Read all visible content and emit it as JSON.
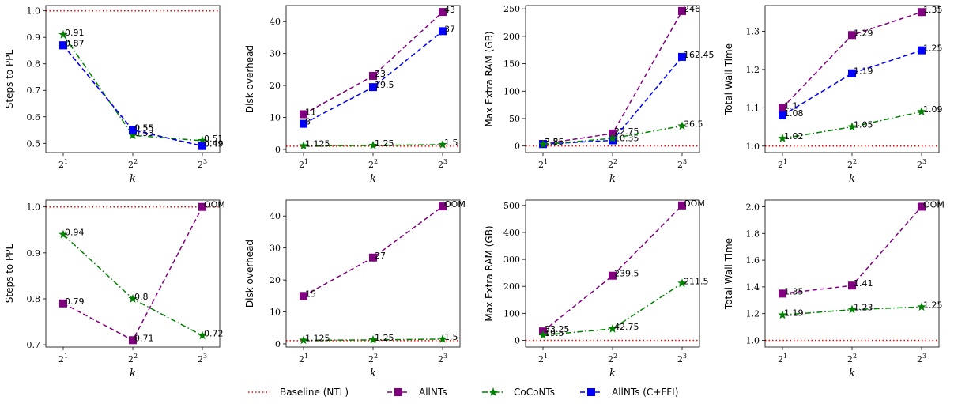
{
  "legend": {
    "entries": [
      {
        "label": "Baseline (NTL)",
        "color": "#ff0000",
        "style": "dotted",
        "marker": "none"
      },
      {
        "label": "AllNTs",
        "color": "#800080",
        "style": "dashed",
        "marker": "square"
      },
      {
        "label": "CoCoNTs",
        "color": "#008000",
        "style": "dashdot",
        "marker": "star"
      },
      {
        "label": "AllNTs (C+FFI)",
        "color": "#0000ff",
        "style": "dashed",
        "marker": "square"
      }
    ]
  },
  "chart_data": [
    {
      "type": "line",
      "row": 1,
      "col": 1,
      "xlabel": "k",
      "ylabel": "Steps to PPL",
      "x": [
        "2^1",
        "2^2",
        "2^3"
      ],
      "ylim": [
        0.465,
        1.02
      ],
      "yticks": [
        0.5,
        0.6,
        0.7,
        0.8,
        0.9,
        1.0
      ],
      "ytick_labels": [
        "0.5",
        "0.6",
        "0.7",
        "0.8",
        "0.9",
        "1.0"
      ],
      "baseline": 1.0,
      "series": [
        {
          "name": "CoCoNTs",
          "values": [
            0.91,
            0.53,
            0.51
          ],
          "labels": [
            "0.91",
            "0.53",
            "0.51"
          ]
        },
        {
          "name": "AllNTs",
          "values": [
            0.87,
            0.55,
            0.49
          ],
          "labels": [
            "0.87",
            "0.55",
            "0.49"
          ]
        },
        {
          "name": "AllNTs (C+FFI)",
          "values": [
            0.87,
            0.55,
            0.49
          ],
          "labels": [
            "0.87",
            "0.55",
            "0.49"
          ]
        }
      ]
    },
    {
      "type": "line",
      "row": 1,
      "col": 2,
      "xlabel": "k",
      "ylabel": "Disk overhead",
      "x": [
        "2^1",
        "2^2",
        "2^3"
      ],
      "ylim": [
        -1,
        45
      ],
      "yticks": [
        0,
        10,
        20,
        30,
        40
      ],
      "ytick_labels": [
        "0",
        "10",
        "20",
        "30",
        "40"
      ],
      "baseline": 1.0,
      "series": [
        {
          "name": "AllNTs",
          "values": [
            11,
            23,
            43
          ],
          "labels": [
            "11",
            "23",
            "43"
          ]
        },
        {
          "name": "AllNTs (C+FFI)",
          "values": [
            8,
            19.5,
            37
          ],
          "labels": [
            "8",
            "19.5",
            "37"
          ]
        },
        {
          "name": "CoCoNTs",
          "values": [
            1.125,
            1.25,
            1.5
          ],
          "labels": [
            "1.125",
            "1.25",
            "1.5"
          ]
        }
      ]
    },
    {
      "type": "line",
      "row": 1,
      "col": 3,
      "xlabel": "k",
      "ylabel": "Max Extra RAM (GB)",
      "x": [
        "2^1",
        "2^2",
        "2^3"
      ],
      "ylim": [
        -12,
        256
      ],
      "yticks": [
        0,
        50,
        100,
        150,
        200,
        250
      ],
      "ytick_labels": [
        "0",
        "50",
        "100",
        "150",
        "200",
        "250"
      ],
      "baseline": 0,
      "series": [
        {
          "name": "AllNTs",
          "values": [
            3.85,
            22.75,
            246
          ],
          "labels": [
            "3.85",
            "22.75",
            "246"
          ]
        },
        {
          "name": "AllNTs (C+FFI)",
          "values": [
            3.5,
            10.35,
            162.45
          ],
          "labels": [
            "3.5",
            "10.35",
            "162.45"
          ]
        },
        {
          "name": "CoCoNTs",
          "values": [
            3.0,
            14.0,
            36.5
          ],
          "labels": [
            "",
            "",
            "36.5"
          ]
        }
      ]
    },
    {
      "type": "line",
      "row": 1,
      "col": 4,
      "xlabel": "k",
      "ylabel": "Total Wall Time",
      "x": [
        "2^1",
        "2^2",
        "2^3"
      ],
      "ylim": [
        0.983,
        1.367
      ],
      "yticks": [
        1.0,
        1.1,
        1.2,
        1.3
      ],
      "ytick_labels": [
        "1.0",
        "1.1",
        "1.2",
        "1.3"
      ],
      "baseline": 1.0,
      "series": [
        {
          "name": "AllNTs",
          "values": [
            1.1,
            1.29,
            1.35
          ],
          "labels": [
            "1.1",
            "1.29",
            "1.35"
          ]
        },
        {
          "name": "AllNTs (C+FFI)",
          "values": [
            1.08,
            1.19,
            1.25
          ],
          "labels": [
            "1.08",
            "1.19",
            "1.25"
          ]
        },
        {
          "name": "CoCoNTs",
          "values": [
            1.02,
            1.05,
            1.09
          ],
          "labels": [
            "1.02",
            "1.05",
            "1.09"
          ]
        }
      ]
    },
    {
      "type": "line",
      "row": 2,
      "col": 1,
      "xlabel": "k",
      "ylabel": "Steps to PPL",
      "x": [
        "2^1",
        "2^2",
        "2^3"
      ],
      "ylim": [
        0.695,
        1.015
      ],
      "yticks": [
        0.7,
        0.8,
        0.9,
        1.0
      ],
      "ytick_labels": [
        "0.7",
        "0.8",
        "0.9",
        "1.0"
      ],
      "baseline": 1.0,
      "series": [
        {
          "name": "AllNTs",
          "values": [
            0.79,
            0.71,
            1.0
          ],
          "labels": [
            "0.79",
            "0.71",
            "OOM"
          ]
        },
        {
          "name": "CoCoNTs",
          "values": [
            0.94,
            0.8,
            0.72
          ],
          "labels": [
            "0.94",
            "0.8",
            "0.72"
          ]
        }
      ]
    },
    {
      "type": "line",
      "row": 2,
      "col": 2,
      "xlabel": "k",
      "ylabel": "Disk overhead",
      "x": [
        "2^1",
        "2^2",
        "2^3"
      ],
      "ylim": [
        -1,
        45
      ],
      "yticks": [
        0,
        10,
        20,
        30,
        40
      ],
      "ytick_labels": [
        "0",
        "10",
        "20",
        "30",
        "40"
      ],
      "baseline": 1.0,
      "series": [
        {
          "name": "AllNTs",
          "values": [
            15,
            27,
            43
          ],
          "labels": [
            "15",
            "27",
            "OOM"
          ]
        },
        {
          "name": "CoCoNTs",
          "values": [
            1.125,
            1.25,
            1.5
          ],
          "labels": [
            "1.125",
            "1.25",
            "1.5"
          ]
        }
      ]
    },
    {
      "type": "line",
      "row": 2,
      "col": 3,
      "xlabel": "k",
      "ylabel": "Max Extra RAM (GB)",
      "x": [
        "2^1",
        "2^2",
        "2^3"
      ],
      "ylim": [
        -25,
        520
      ],
      "yticks": [
        0,
        100,
        200,
        300,
        400,
        500
      ],
      "ytick_labels": [
        "0",
        "100",
        "200",
        "300",
        "400",
        "500"
      ],
      "baseline": 0,
      "series": [
        {
          "name": "AllNTs",
          "values": [
            33.25,
            239.5,
            500
          ],
          "labels": [
            "33.25",
            "239.5",
            "OOM"
          ]
        },
        {
          "name": "CoCoNTs",
          "values": [
            19.5,
            42.75,
            211.5
          ],
          "labels": [
            "19.5",
            "42.75",
            "211.5"
          ]
        }
      ]
    },
    {
      "type": "line",
      "row": 2,
      "col": 4,
      "xlabel": "k",
      "ylabel": "Total Wall Time",
      "x": [
        "2^1",
        "2^2",
        "2^3"
      ],
      "ylim": [
        0.95,
        2.05
      ],
      "yticks": [
        1.0,
        1.2,
        1.4,
        1.6,
        1.8,
        2.0
      ],
      "ytick_labels": [
        "1.0",
        "1.2",
        "1.4",
        "1.6",
        "1.8",
        "2.0"
      ],
      "baseline": 1.0,
      "series": [
        {
          "name": "AllNTs",
          "values": [
            1.35,
            1.41,
            2.0
          ],
          "labels": [
            "1.35",
            "1.41",
            "OOM"
          ]
        },
        {
          "name": "CoCoNTs",
          "values": [
            1.19,
            1.23,
            1.25
          ],
          "labels": [
            "1.19",
            "1.23",
            "1.25"
          ]
        }
      ]
    }
  ]
}
